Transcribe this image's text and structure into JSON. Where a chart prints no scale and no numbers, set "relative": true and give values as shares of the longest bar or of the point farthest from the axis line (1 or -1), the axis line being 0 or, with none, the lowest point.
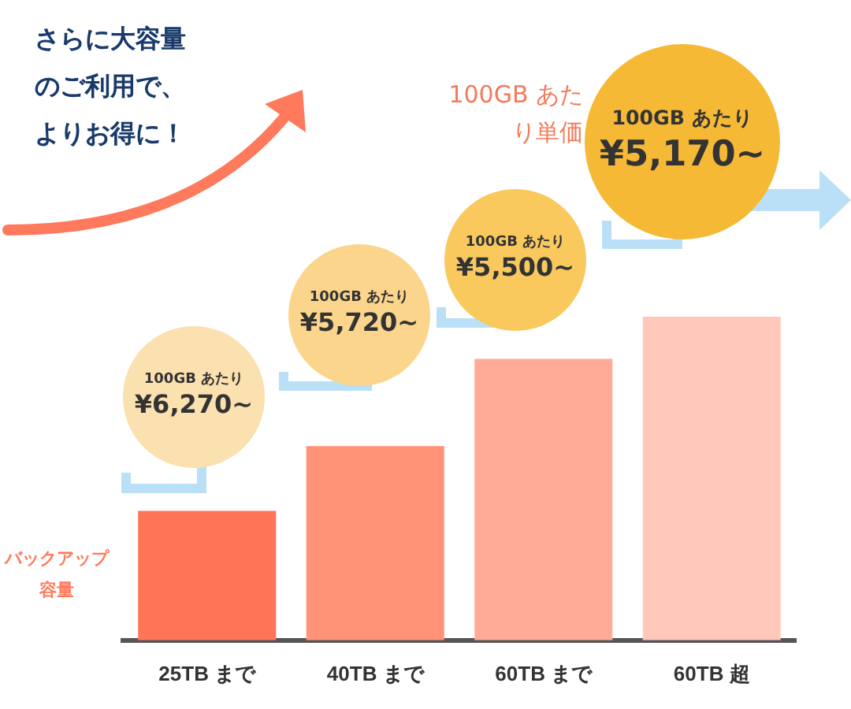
{
  "chart_data": {
    "type": "bar",
    "categories": [
      "25TB まで",
      "40TB まで",
      "60TB まで",
      "60TB 超"
    ],
    "values": [
      0.4,
      0.6,
      0.87,
      1
    ],
    "colors": [
      "#ff7555",
      "#ff9378",
      "#ffab98",
      "#ffc8bb"
    ],
    "relative": true,
    "ylabel": "バックアップ容量",
    "annotations": [
      "さらに大容量のご利用で、よりお得に！",
      "100GB あたり単価",
      "100GB あたり ¥6,270~",
      "100GB あたり ¥5,720~",
      "100GB あたり ¥5,500~",
      "100GB あたり ¥5,170~"
    ]
  }
}
